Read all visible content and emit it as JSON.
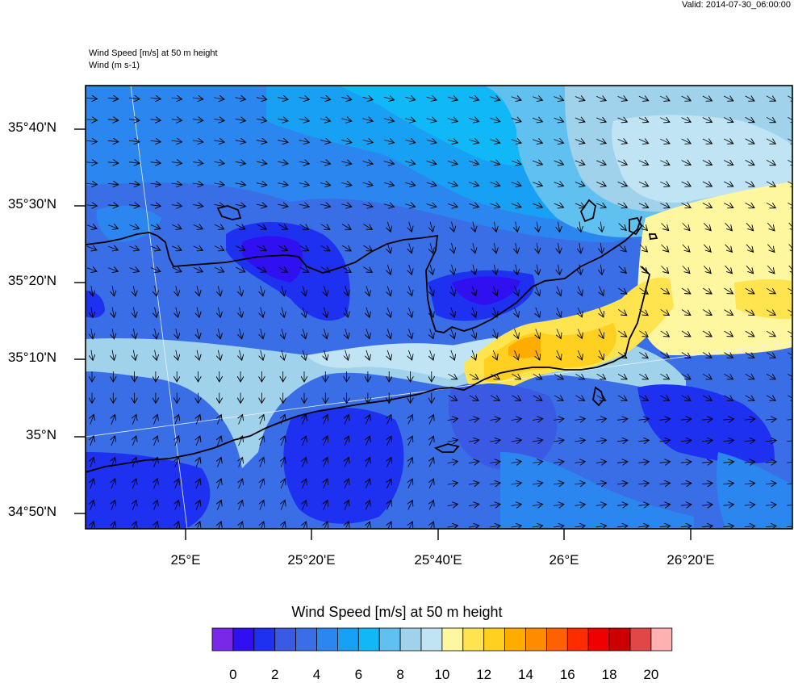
{
  "header": {
    "valid": "Valid: 2014-07-30_06:00:00",
    "field_title": "Wind Speed [m/s] at 50 m height",
    "vector_title": "Wind   (m s-1)"
  },
  "map": {
    "lat_labels": [
      "35°40'N",
      "35°30'N",
      "35°20'N",
      "35°10'N",
      "35°N",
      "34°50'N"
    ],
    "lon_labels": [
      "25°E",
      "25°20'E",
      "25°40'E",
      "26°E",
      "26°20'E"
    ]
  },
  "colorbar": {
    "title": "Wind Speed [m/s] at 50 m height",
    "tick_labels": [
      "0",
      "2",
      "4",
      "6",
      "8",
      "10",
      "12",
      "14",
      "16",
      "18",
      "20"
    ],
    "colors": [
      "#7a28e8",
      "#3010f0",
      "#1e30f0",
      "#3a5ae4",
      "#3a6ee6",
      "#2b86f0",
      "#18a0f4",
      "#10b8f8",
      "#60c0f0",
      "#a0d2ec",
      "#c0e4f4",
      "#fff6a0",
      "#ffe450",
      "#ffd020",
      "#ffac00",
      "#ff8c00",
      "#ff6000",
      "#ff2c00",
      "#f00000",
      "#cc0000",
      "#e04848",
      "#ffb0b0"
    ]
  }
}
